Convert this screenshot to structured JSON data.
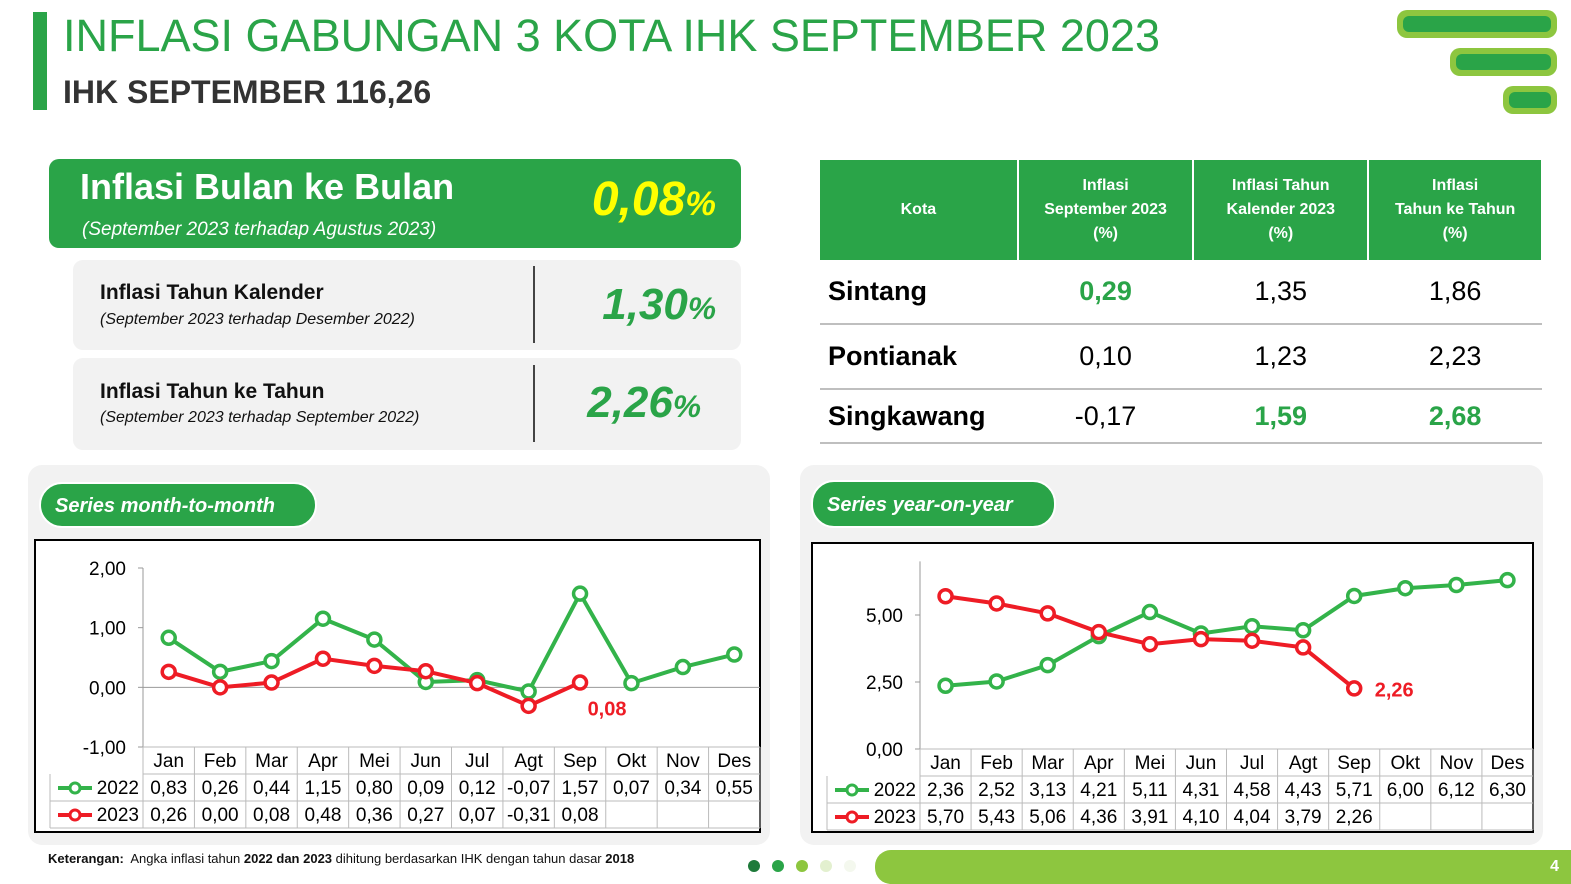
{
  "header": {
    "title": "INFLASI GABUNGAN 3 KOTA IHK SEPTEMBER 2023",
    "subtitle": "IHK SEPTEMBER 116,26"
  },
  "cards": [
    {
      "title": "Inflasi Bulan ke Bulan",
      "subtitle": "(September 2023 terhadap Agustus 2023)",
      "value": "0,08",
      "unit": "%"
    },
    {
      "title": "Inflasi Tahun Kalender",
      "subtitle": "(September 2023 terhadap Desember 2022)",
      "value": "1,30",
      "unit": "%"
    },
    {
      "title": "Inflasi Tahun ke Tahun",
      "subtitle": "(September 2023 terhadap September 2022)",
      "value": "2,26",
      "unit": "%"
    }
  ],
  "table": {
    "header": [
      [
        "Kota"
      ],
      [
        "Inflasi",
        "September 2023",
        "(%)"
      ],
      [
        "Inflasi Tahun",
        "Kalender 2023",
        "(%)"
      ],
      [
        "Inflasi",
        "Tahun ke Tahun",
        "(%)"
      ]
    ],
    "rows": [
      [
        "Sintang",
        "0,29",
        "1,35",
        "1,86"
      ],
      [
        "Pontianak",
        "0,10",
        "1,23",
        "2,23"
      ],
      [
        "Singkawang",
        "-0,17",
        "1,59",
        "2,68"
      ]
    ]
  },
  "chart_data": [
    {
      "type": "line",
      "title": "Series month-to-month",
      "categories": [
        "Jan",
        "Feb",
        "Mar",
        "Apr",
        "Mei",
        "Jun",
        "Jul",
        "Agt",
        "Sep",
        "Okt",
        "Nov",
        "Des"
      ],
      "ylim": [
        -1,
        2
      ],
      "yticks": [
        {
          "value": -1,
          "label": "-1,00"
        },
        {
          "value": 0,
          "label": "0,00"
        },
        {
          "value": 1,
          "label": "1,00"
        },
        {
          "value": 2,
          "label": "2,00"
        }
      ],
      "series": [
        {
          "name": "2022",
          "color": "#33b34a",
          "values": [
            0.83,
            0.26,
            0.44,
            1.15,
            0.8,
            0.09,
            0.12,
            -0.07,
            1.57,
            0.07,
            0.34,
            0.55
          ],
          "value_labels": [
            "0,83",
            "0,26",
            "0,44",
            "1,15",
            "0,80",
            "0,09",
            "0,12",
            "-0,07",
            "1,57",
            "0,07",
            "0,34",
            "0,55"
          ]
        },
        {
          "name": "2023",
          "color": "#ee1c25",
          "values": [
            0.26,
            0.0,
            0.08,
            0.48,
            0.36,
            0.27,
            0.07,
            -0.31,
            0.08,
            null,
            null,
            null
          ],
          "value_labels": [
            "0,26",
            "0,00",
            "0,08",
            "0,48",
            "0,36",
            "0,27",
            "0,07",
            "-0,31",
            "0,08",
            null,
            null,
            null
          ]
        }
      ]
    },
    {
      "type": "line",
      "title": "Series year-on-year",
      "categories": [
        "Jan",
        "Feb",
        "Mar",
        "Apr",
        "Mei",
        "Jun",
        "Jul",
        "Agt",
        "Sep",
        "Okt",
        "Nov",
        "Des"
      ],
      "ylim": [
        0,
        7
      ],
      "yticks": [
        {
          "value": 0,
          "label": "0,00"
        },
        {
          "value": 2.5,
          "label": "2,50"
        },
        {
          "value": 5,
          "label": "5,00"
        }
      ],
      "series": [
        {
          "name": "2022",
          "color": "#33b34a",
          "values": [
            2.36,
            2.52,
            3.13,
            4.21,
            5.11,
            4.31,
            4.58,
            4.43,
            5.71,
            6.0,
            6.12,
            6.3
          ],
          "value_labels": [
            "2,36",
            "2,52",
            "3,13",
            "4,21",
            "5,11",
            "4,31",
            "4,58",
            "4,43",
            "5,71",
            "6,00",
            "6,12",
            "6,30"
          ]
        },
        {
          "name": "2023",
          "color": "#ee1c25",
          "values": [
            5.7,
            5.43,
            5.06,
            4.36,
            3.91,
            4.1,
            4.04,
            3.79,
            2.26,
            null,
            null,
            null
          ],
          "value_labels": [
            "5,70",
            "5,43",
            "5,06",
            "4,36",
            "3,91",
            "4,10",
            "4,04",
            "3,79",
            "2,26",
            null,
            null,
            null
          ]
        }
      ]
    }
  ],
  "footer": {
    "label": "Keterangan:",
    "parts": [
      "Angka inflasi tahun",
      "2022 dan 2023",
      "dihitung berdasarkan IHK dengan tahun dasar",
      "2018"
    ],
    "page": "4"
  }
}
